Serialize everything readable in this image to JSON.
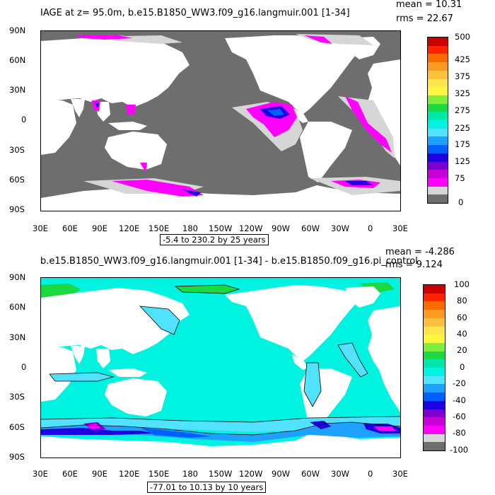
{
  "panel1": {
    "title": "IAGE at z=  95.0m, b.e15.B1850_WW3.f09_g16.langmuir.001  [1-34]",
    "mean": "mean = 10.31",
    "rms": "rms = 22.67",
    "range_label": "-5.4 to 230.2 by 25 years",
    "colorbar_labels": [
      "500",
      "425",
      "375",
      "325",
      "275",
      "225",
      "175",
      "125",
      "75",
      "0"
    ],
    "colorbar_colors": [
      "#cc0000",
      "#ff2200",
      "#ff6a00",
      "#ff9a20",
      "#ffbf3f",
      "#ffe44a",
      "#fff640",
      "#7fee3c",
      "#1cd841",
      "#00e8a8",
      "#00f2e0",
      "#50e2ff",
      "#1ea0ff",
      "#0060ff",
      "#1e00e0",
      "#7b00d0",
      "#c800d8",
      "#ff00ff",
      "#d6d6d6",
      "#6e6e6e"
    ]
  },
  "panel2": {
    "title": "b.e15.B1850_WW3.f09_g16.langmuir.001  [1-34]  -  b.e15.B1850.f09_g16.pi_control",
    "mean": "mean = -4.286",
    "rms": "rms = 9.124",
    "range_label": "-77.01 to 10.13 by 10 years",
    "colorbar_labels": [
      "100",
      "80",
      "60",
      "40",
      "20",
      "0",
      "-20",
      "-40",
      "-60",
      "-80",
      "-100"
    ],
    "colorbar_colors": [
      "#cc0000",
      "#ff2200",
      "#ff6a00",
      "#ff9a20",
      "#ffbf3f",
      "#ffe44a",
      "#fff640",
      "#7fee3c",
      "#1cd841",
      "#00e8a8",
      "#00f2e0",
      "#50e2ff",
      "#1ea0ff",
      "#0060ff",
      "#1e00e0",
      "#7b00d0",
      "#c800d8",
      "#ff00ff",
      "#d6d6d6",
      "#6e6e6e"
    ]
  },
  "lat_labels": [
    "90N",
    "60N",
    "30N",
    "0",
    "30S",
    "60S",
    "90S"
  ],
  "lon_labels": [
    "30E",
    "60E",
    "90E",
    "120E",
    "150E",
    "180",
    "150W",
    "120W",
    "90W",
    "60W",
    "30W",
    "0",
    "30E"
  ],
  "colors": {
    "land": "#ffffff",
    "ocean_dark": "#6e6e6e",
    "ocean_light": "#d6d6d6",
    "magenta": "#ff00ff",
    "purple": "#c800d8",
    "blue": "#1e00e0",
    "cyan_ocean": "#00f2e0",
    "cyan_light": "#50e2ff",
    "green": "#1cd841"
  }
}
